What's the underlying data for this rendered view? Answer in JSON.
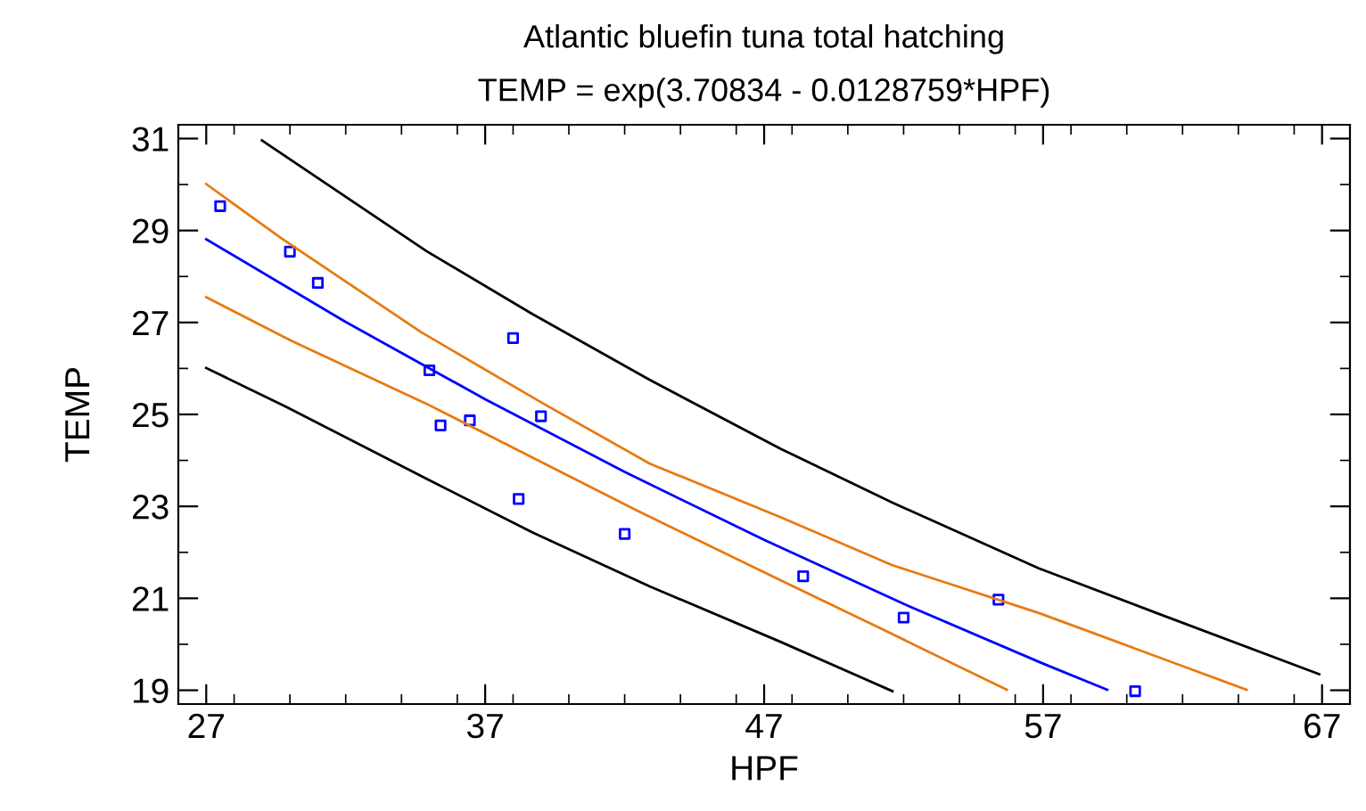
{
  "chart_data": {
    "type": "scatter",
    "title": "Atlantic bluefin tuna total hatching",
    "subtitle": "TEMP = exp(3.70834 - 0.0128759*HPF)",
    "xlabel": "HPF",
    "ylabel": "TEMP",
    "xlim": [
      26,
      68
    ],
    "ylim": [
      18.7,
      31.3
    ],
    "xticks": [
      27,
      37,
      47,
      57,
      67
    ],
    "yticks": [
      19,
      21,
      23,
      25,
      27,
      29,
      31
    ],
    "grid": false,
    "legend": false,
    "series": [
      {
        "type": "line",
        "color": "#000000",
        "x": [
          29.0,
          34.9,
          38.7,
          42.9,
          47.6,
          51.6,
          56.85,
          61.07,
          66.9
        ],
        "values": [
          30.96,
          28.55,
          27.18,
          25.75,
          24.25,
          23.08,
          21.65,
          20.68,
          19.35
        ]
      },
      {
        "type": "line",
        "color": "#e87a10",
        "x": [
          27,
          29.74,
          34.7,
          39.1,
          42.9,
          47.6,
          51.6,
          56.85,
          64.3
        ],
        "values": [
          30.01,
          28.81,
          26.79,
          25.23,
          23.93,
          22.76,
          21.72,
          20.68,
          19.01
        ]
      },
      {
        "type": "line",
        "color": "#0000ff",
        "x": [
          27,
          32,
          37,
          42,
          47,
          52,
          57,
          59.3
        ],
        "values": [
          28.81,
          27.01,
          25.33,
          23.75,
          22.27,
          20.88,
          19.58,
          19.01
        ]
      },
      {
        "type": "line",
        "color": "#e87a10",
        "x": [
          27,
          30.06,
          34.9,
          38.7,
          42.5,
          47.6,
          51.6,
          55.7
        ],
        "values": [
          27.55,
          26.6,
          25.23,
          24.06,
          22.89,
          21.39,
          20.22,
          19.01
        ]
      },
      {
        "type": "line",
        "color": "#000000",
        "x": [
          27,
          29.85,
          34.9,
          38.7,
          42.9,
          47.6,
          51.6
        ],
        "values": [
          26.01,
          25.17,
          23.6,
          22.43,
          21.26,
          20.05,
          18.98
        ]
      },
      {
        "color": "#0000ff",
        "marker": "square",
        "x": [
          27.5,
          30.0,
          31.0,
          35.0,
          35.4,
          36.45,
          38.0,
          38.2,
          39.0,
          42.0,
          48.4,
          52.0,
          55.4,
          60.3
        ],
        "values": [
          29.53,
          28.54,
          27.86,
          25.96,
          24.76,
          24.87,
          26.66,
          23.16,
          24.96,
          22.4,
          21.48,
          20.58,
          20.97,
          18.98
        ]
      }
    ]
  }
}
